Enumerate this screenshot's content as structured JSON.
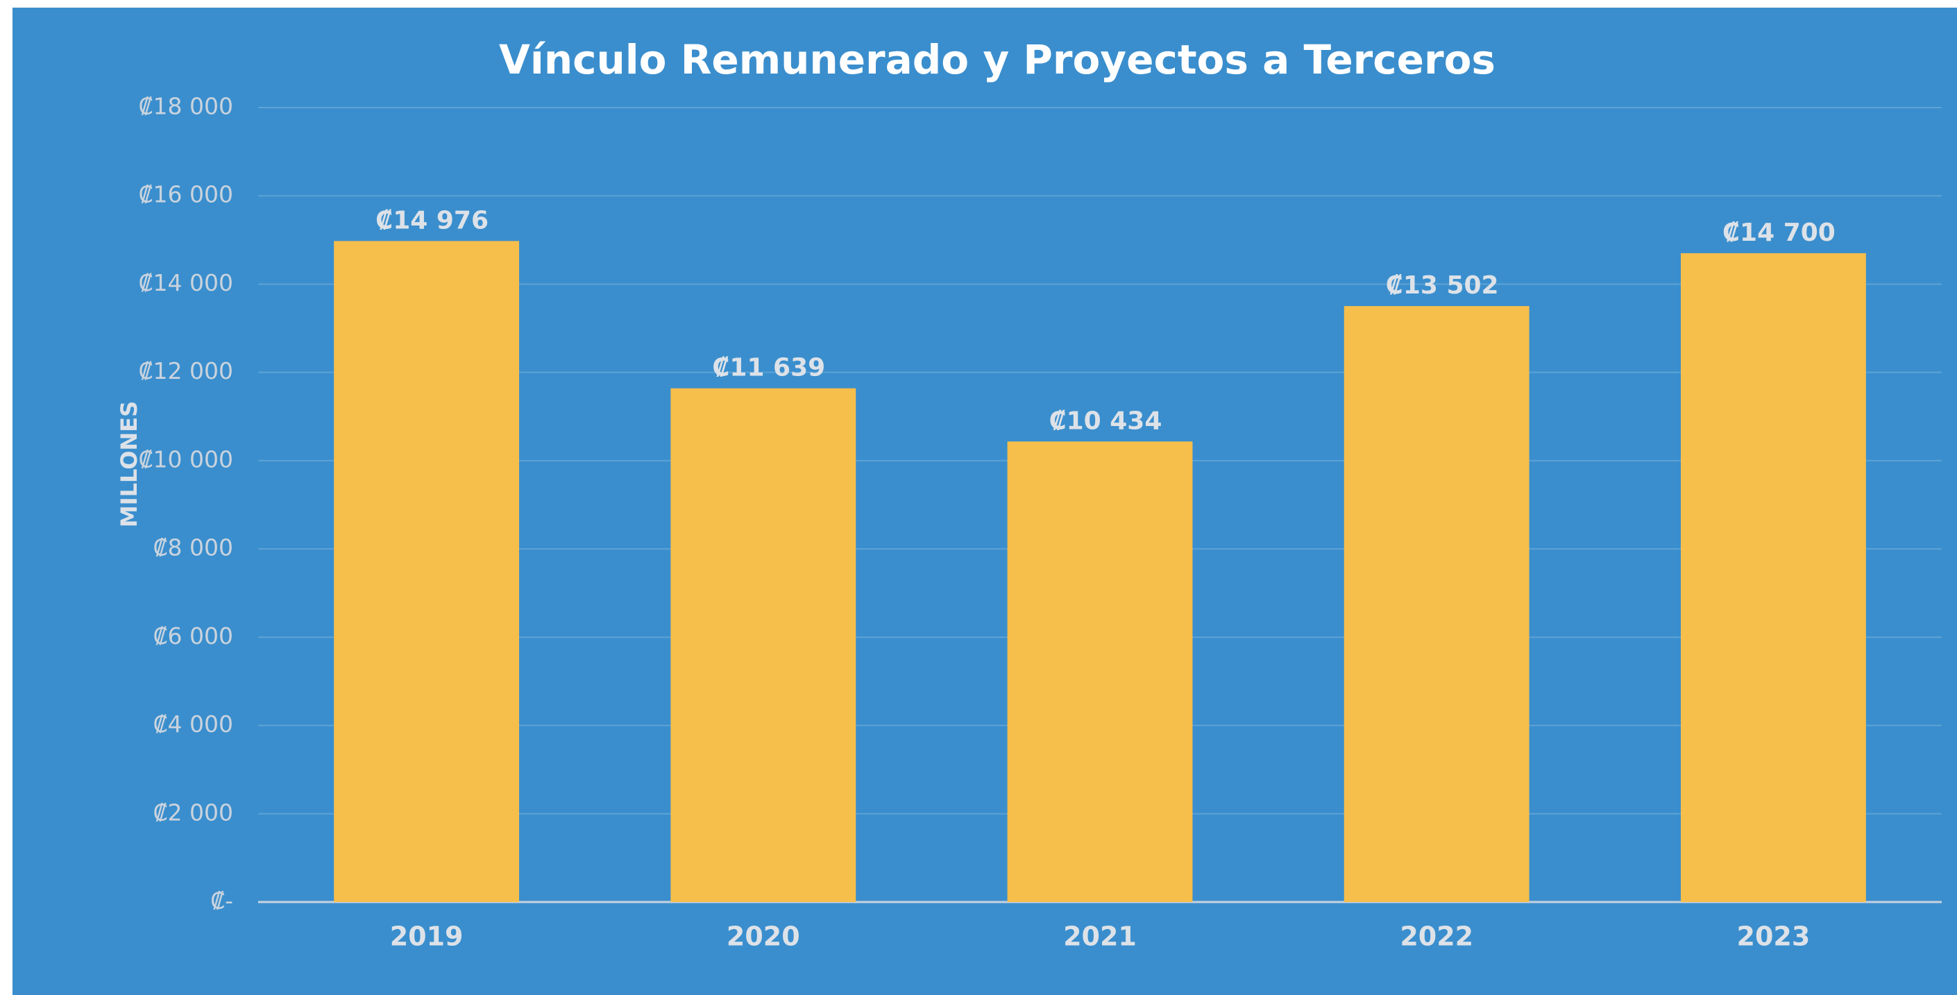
{
  "chart_data": {
    "type": "bar",
    "title": "Vínculo Remunerado y Proyectos a Terceros",
    "y_label": "MILLONES",
    "categories": [
      "2019",
      "2020",
      "2021",
      "2022",
      "2023"
    ],
    "values": [
      14976,
      11639,
      10434,
      13502,
      14700
    ],
    "value_labels": [
      "₡14 976",
      "₡11 639",
      "₡10 434",
      "₡13 502",
      "₡14 700"
    ],
    "color": "#f6be4b",
    "ylim": [
      0,
      18000
    ],
    "yticks": [
      {
        "value": 0,
        "label": "₡-"
      },
      {
        "value": 2000,
        "label": "₡2 000"
      },
      {
        "value": 4000,
        "label": "₡4 000"
      },
      {
        "value": 6000,
        "label": "₡6 000"
      },
      {
        "value": 8000,
        "label": "₡8 000"
      },
      {
        "value": 10000,
        "label": "₡10 000"
      },
      {
        "value": 12000,
        "label": "₡12 000"
      },
      {
        "value": 14000,
        "label": "₡14 000"
      },
      {
        "value": 16000,
        "label": "₡16 000"
      },
      {
        "value": 18000,
        "label": "₡18 000"
      }
    ],
    "grid": true
  }
}
